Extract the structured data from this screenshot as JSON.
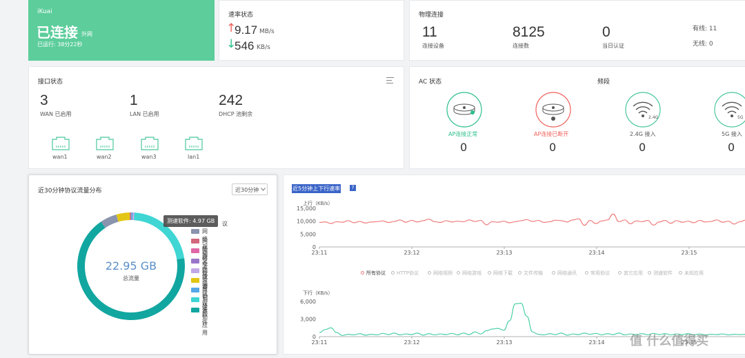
{
  "status_card": {
    "brand": "iKuai",
    "status": "已连接",
    "status_sub": "外网",
    "uptime": "已运行: 38分22秒",
    "bg": "#5ccd9b"
  },
  "speed_card": {
    "title": "速率状态",
    "up_arrow": "↑",
    "up_value": "9.17",
    "up_unit": "MB/s",
    "down_arrow": "↓",
    "down_value": "546",
    "down_unit": "KB/s"
  },
  "phys_card": {
    "title": "物理连接",
    "stats": [
      {
        "value": "11",
        "label": "连接设备"
      },
      {
        "value": "8125",
        "label": "连接数"
      },
      {
        "value": "0",
        "label": "当日认证"
      }
    ],
    "wired": "有线: 11",
    "wireless": "无线: 0"
  },
  "iface_card": {
    "title": "接口状态",
    "menu_icon": "hamburger-menu-icon",
    "stats": [
      {
        "value": "3",
        "label": "WAN 已启用"
      },
      {
        "value": "1",
        "label": "LAN 已启用"
      },
      {
        "value": "242",
        "label": "DHCP 池剩余"
      }
    ],
    "ports": [
      "wan1",
      "wan2",
      "wan3",
      "lan1"
    ]
  },
  "ac_card": {
    "title": "AC 状态",
    "band_title": "频段",
    "items": [
      {
        "label": "AP连接正常",
        "value": "0",
        "color": "#2bbf8a",
        "icon": "access-point-ok-icon",
        "badge": ""
      },
      {
        "label": "AP连接已断开",
        "value": "0",
        "color": "#f0605b",
        "icon": "access-point-disconnected-icon",
        "badge": ""
      },
      {
        "label": "2.4G 接入",
        "value": "0",
        "color": "#555555",
        "icon": "wifi-icon",
        "badge": "2.4G"
      },
      {
        "label": "5G 接入",
        "value": "0",
        "color": "#555555",
        "icon": "wifi-icon",
        "badge": "5G"
      }
    ]
  },
  "proto_card": {
    "title": "近30分钟协议流量分布",
    "select": "近30分钟",
    "total": "22.95 GB",
    "total_label": "总流量",
    "tooltip": "测速软件: 4.97 GB",
    "tooltip_clip": "议",
    "legend": [
      {
        "name": "网络视频",
        "color": "#8a94ad"
      },
      {
        "name": "网络游戏",
        "color": "#d2677d"
      },
      {
        "name": "网络下载",
        "color": "#e066a6"
      },
      {
        "name": "文件传输",
        "color": "#9a76c9"
      },
      {
        "name": "网络通讯",
        "color": "#c2a8e8"
      },
      {
        "name": "常用协议",
        "color": "#e3c614"
      },
      {
        "name": "其它应用",
        "color": "#56a8e6"
      },
      {
        "name": "测速软件",
        "color": "#3fd6d4"
      },
      {
        "name": "未知应用",
        "color": "#12a6a0"
      }
    ]
  },
  "rate_card": {
    "title": "近5分钟上下行速率",
    "help_icon": "question-mark-icon",
    "up_label": "上行（KB/s）",
    "down_label": "下行（KB/s）",
    "legend": [
      "所有协议",
      "HTTP协议",
      "网络视频",
      "网络游戏",
      "网络下载",
      "文件传输",
      "网络通讯",
      "常用协议",
      "其它应用",
      "测速软件",
      "未知应用"
    ],
    "watermark": "值 什么值得买"
  },
  "chart_data": [
    {
      "type": "pie",
      "title": "近30分钟协议流量分布",
      "center_text": "22.95 GB",
      "slices": [
        {
          "name": "测速软件",
          "value": 4.97,
          "color": "#3fd6d4"
        },
        {
          "name": "未知应用",
          "value": 15.6,
          "color": "#12a6a0"
        },
        {
          "name": "网络视频",
          "value": 1.15,
          "color": "#8a94ad"
        },
        {
          "name": "常用协议",
          "value": 0.92,
          "color": "#e3c614"
        },
        {
          "name": "网络游戏",
          "value": 0.1,
          "color": "#d2677d"
        },
        {
          "name": "其它应用",
          "value": 0.11,
          "color": "#56a8e6"
        },
        {
          "name": "网络通讯",
          "value": 0.1,
          "color": "#c2a8e8"
        }
      ],
      "legend_placement": "right"
    },
    {
      "type": "line",
      "title": "近5分钟上下行速率",
      "ylabel": "上行（KB/s）",
      "x_ticks": [
        "23:11",
        "23:12",
        "23:13",
        "23:14",
        "23:15"
      ],
      "y_ticks": [
        0,
        5000,
        10000,
        15000
      ],
      "ylim": [
        0,
        15000
      ],
      "series": [
        {
          "name": "所有协议",
          "color": "#f07b7b",
          "values": [
            9500,
            9700,
            9100,
            9800,
            9600,
            10200,
            9400,
            9900,
            9300,
            9700,
            9800,
            10100,
            9500,
            9900,
            10500,
            9600,
            10300,
            9700,
            10200,
            10800,
            9800,
            9500,
            10200,
            9700,
            10000,
            9800,
            10500,
            9900,
            10300,
            8600,
            9800,
            9600,
            10000,
            9400,
            9800,
            10200,
            10600,
            9900,
            10300,
            9500,
            9800,
            10400,
            10200,
            9700,
            10500,
            10900,
            8400,
            10300,
            9100,
            10100,
            10500,
            12800,
            9800,
            10500,
            9000,
            10100,
            9800,
            10300,
            8500,
            9700,
            10300,
            9200,
            10200,
            9600,
            10000,
            9400,
            10300,
            9700,
            9900,
            10500,
            9600,
            10000,
            8900,
            9800,
            10400
          ]
        }
      ]
    },
    {
      "type": "line",
      "ylabel": "下行（KB/s）",
      "x_ticks": [
        "23:11",
        "23:12",
        "23:13",
        "23:14",
        "23:15"
      ],
      "y_ticks": [
        0,
        3000,
        6000
      ],
      "ylim": [
        0,
        6600
      ],
      "series": [
        {
          "name": "所有协议",
          "color": "#4ccfa8",
          "values": [
            700,
            1200,
            1500,
            700,
            200,
            400,
            300,
            500,
            250,
            400,
            300,
            550,
            350,
            600,
            300,
            450,
            350,
            600,
            250,
            500,
            300,
            450,
            350,
            550,
            300,
            600,
            350,
            800,
            450,
            1000,
            1300,
            1400,
            1100,
            2700,
            5600,
            5700,
            3500,
            800,
            400,
            300,
            500,
            350,
            600,
            250,
            450,
            350,
            600,
            400,
            550,
            300,
            500,
            350,
            600,
            300,
            450,
            350,
            500,
            300,
            550,
            350,
            500,
            300,
            450,
            350,
            500,
            300,
            450,
            300,
            400,
            350,
            450,
            300,
            400,
            350,
            400
          ]
        }
      ]
    }
  ]
}
